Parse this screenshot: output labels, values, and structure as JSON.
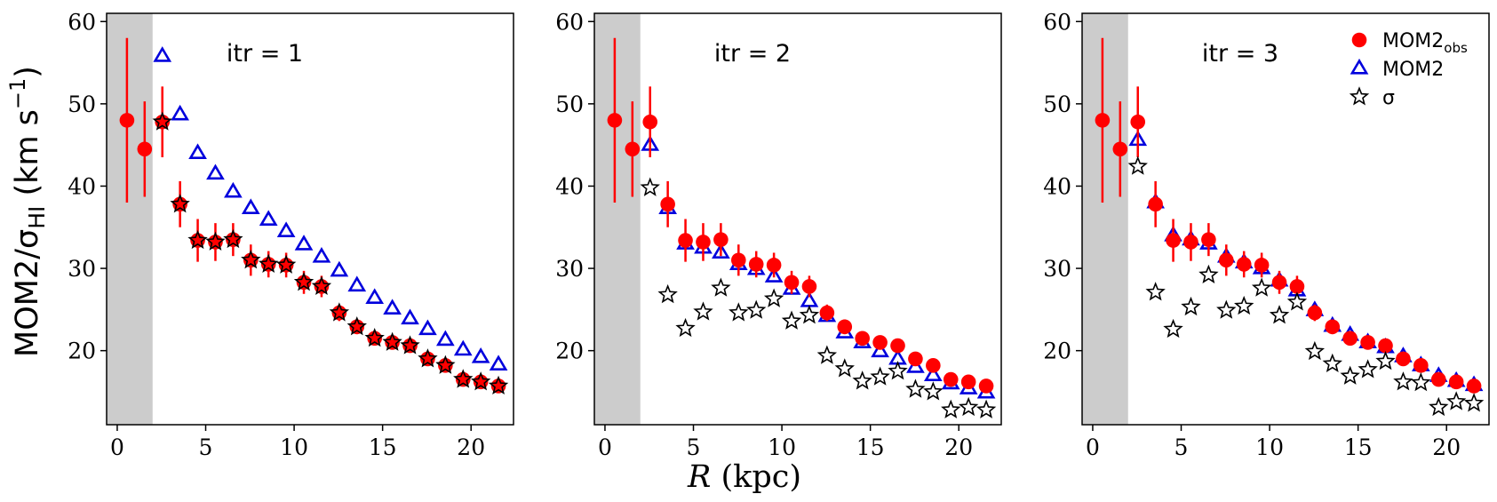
{
  "chart_data": {
    "type": "scatter",
    "layout": "three panels side by side, shared y-axis label on left, shared x-axis label at bottom",
    "ylabel": {
      "main": "MOM2/σ",
      "sub": "HI",
      "units_prefix": " (km s",
      "units_sup": "−1",
      "units_suffix": ")"
    },
    "xlabel": {
      "var": "R",
      "units": " (kpc)"
    },
    "xlim": [
      -0.6,
      22.4
    ],
    "ylim": [
      11,
      61
    ],
    "xticks": [
      0,
      5,
      10,
      15,
      20
    ],
    "yticks": [
      20,
      30,
      40,
      50,
      60
    ],
    "shaded_region": {
      "x_from": -0.6,
      "x_to": 2.0,
      "color": "#cccccc"
    },
    "colors": {
      "obs": "#ff0000",
      "mom2": "#0000dd",
      "sigma": "#000000"
    },
    "legend": {
      "location": "top-right of third panel",
      "entries": [
        {
          "key": "obs",
          "label": "MOM2",
          "sub": "obs"
        },
        {
          "key": "mom2",
          "label": "MOM2",
          "sub": ""
        },
        {
          "key": "sigma",
          "label": "σ",
          "sub": ""
        }
      ]
    },
    "panels": [
      {
        "title": "itr = 1",
        "series": {
          "obs": {
            "name": "MOM2_obs",
            "x": [
              0.55,
              1.55,
              2.55,
              3.55,
              4.55,
              5.55,
              6.55,
              7.55,
              8.55,
              9.55,
              10.55,
              11.55,
              12.55,
              13.55,
              14.55,
              15.55,
              16.55,
              17.55,
              18.55,
              19.55,
              20.55,
              21.55
            ],
            "y": [
              48.0,
              44.5,
              47.8,
              37.8,
              33.4,
              33.2,
              33.5,
              31.0,
              30.5,
              30.4,
              28.3,
              27.8,
              24.6,
              22.9,
              21.5,
              21.0,
              20.6,
              19.0,
              18.2,
              16.5,
              16.2,
              15.7
            ],
            "err": [
              10.0,
              5.8,
              4.3,
              2.8,
              2.6,
              2.3,
              2.0,
              1.9,
              1.6,
              1.5,
              1.4,
              1.3,
              1.0,
              0.9,
              0.8,
              0.8,
              0.7,
              0.7,
              0.7,
              0.6,
              0.6,
              0.6
            ]
          },
          "mom2": {
            "name": "MOM2",
            "x": [
              2.55,
              3.55,
              4.55,
              5.55,
              6.55,
              7.55,
              8.55,
              9.55,
              10.55,
              11.55,
              12.55,
              13.55,
              14.55,
              15.55,
              16.55,
              17.55,
              18.55,
              19.55,
              20.55,
              21.55
            ],
            "y": [
              55.8,
              48.7,
              44.0,
              41.5,
              39.3,
              37.3,
              35.9,
              34.5,
              32.9,
              31.4,
              29.7,
              27.9,
              26.4,
              25.1,
              23.9,
              22.6,
              21.3,
              20.1,
              19.2,
              18.3
            ]
          },
          "sigma": {
            "name": "σ",
            "filled_red": true,
            "x": [
              2.55,
              3.55,
              4.55,
              5.55,
              6.55,
              7.55,
              8.55,
              9.55,
              10.55,
              11.55,
              12.55,
              13.55,
              14.55,
              15.55,
              16.55,
              17.55,
              18.55,
              19.55,
              20.55,
              21.55
            ],
            "y": [
              47.8,
              37.8,
              33.4,
              33.2,
              33.5,
              31.0,
              30.5,
              30.4,
              28.3,
              27.8,
              24.6,
              22.9,
              21.5,
              21.0,
              20.6,
              19.0,
              18.2,
              16.5,
              16.2,
              15.7
            ]
          }
        }
      },
      {
        "title": "itr = 2",
        "series": {
          "obs": {
            "name": "MOM2_obs",
            "x": [
              0.55,
              1.55,
              2.55,
              3.55,
              4.55,
              5.55,
              6.55,
              7.55,
              8.55,
              9.55,
              10.55,
              11.55,
              12.55,
              13.55,
              14.55,
              15.55,
              16.55,
              17.55,
              18.55,
              19.55,
              20.55,
              21.55
            ],
            "y": [
              48.0,
              44.5,
              47.8,
              37.8,
              33.4,
              33.2,
              33.5,
              31.0,
              30.5,
              30.4,
              28.3,
              27.8,
              24.6,
              22.9,
              21.5,
              21.0,
              20.6,
              19.0,
              18.2,
              16.5,
              16.2,
              15.7
            ],
            "err": [
              10.0,
              5.8,
              4.3,
              2.8,
              2.6,
              2.3,
              2.0,
              1.9,
              1.6,
              1.5,
              1.4,
              1.3,
              1.0,
              0.9,
              0.8,
              0.8,
              0.7,
              0.7,
              0.7,
              0.6,
              0.6,
              0.6
            ]
          },
          "mom2": {
            "name": "MOM2",
            "x": [
              2.55,
              3.55,
              4.55,
              5.55,
              6.55,
              7.55,
              8.55,
              9.55,
              10.55,
              11.55,
              12.55,
              13.55,
              14.55,
              15.55,
              16.55,
              17.55,
              18.55,
              19.55,
              20.55,
              21.55
            ],
            "y": [
              45.0,
              37.3,
              33.0,
              32.5,
              31.9,
              30.5,
              29.9,
              29.0,
              27.5,
              26.0,
              24.2,
              22.2,
              21.0,
              19.9,
              19.0,
              18.0,
              17.0,
              16.0,
              15.4,
              14.9
            ]
          },
          "sigma": {
            "name": "σ",
            "filled_red": false,
            "x": [
              2.55,
              3.55,
              4.55,
              5.55,
              6.55,
              7.55,
              8.55,
              9.55,
              10.55,
              11.55,
              12.55,
              13.55,
              14.55,
              15.55,
              16.55,
              17.55,
              18.55,
              19.55,
              20.55,
              21.55
            ],
            "y": [
              39.8,
              26.8,
              22.7,
              24.7,
              27.6,
              24.6,
              24.9,
              26.3,
              23.6,
              24.3,
              19.4,
              17.8,
              16.3,
              16.8,
              17.5,
              15.3,
              15.0,
              12.8,
              13.1,
              12.8
            ]
          }
        }
      },
      {
        "title": "itr = 3",
        "series": {
          "obs": {
            "name": "MOM2_obs",
            "x": [
              0.55,
              1.55,
              2.55,
              3.55,
              4.55,
              5.55,
              6.55,
              7.55,
              8.55,
              9.55,
              10.55,
              11.55,
              12.55,
              13.55,
              14.55,
              15.55,
              16.55,
              17.55,
              18.55,
              19.55,
              20.55,
              21.55
            ],
            "y": [
              48.0,
              44.5,
              47.8,
              37.8,
              33.4,
              33.2,
              33.5,
              31.0,
              30.5,
              30.4,
              28.3,
              27.8,
              24.6,
              22.9,
              21.5,
              21.0,
              20.6,
              19.0,
              18.2,
              16.5,
              16.2,
              15.7
            ],
            "err": [
              10.0,
              5.8,
              4.3,
              2.8,
              2.6,
              2.3,
              2.0,
              1.9,
              1.6,
              1.5,
              1.4,
              1.3,
              1.0,
              0.9,
              0.8,
              0.8,
              0.7,
              0.7,
              0.7,
              0.6,
              0.6,
              0.6
            ]
          },
          "mom2": {
            "name": "MOM2",
            "x": [
              2.55,
              3.55,
              4.55,
              5.55,
              6.55,
              7.55,
              8.55,
              9.55,
              10.55,
              11.55,
              12.55,
              13.55,
              14.55,
              15.55,
              16.55,
              17.55,
              18.55,
              19.55,
              20.55,
              21.55
            ],
            "y": [
              45.6,
              38.0,
              34.0,
              33.5,
              33.0,
              31.4,
              30.7,
              30.0,
              28.5,
              27.3,
              24.9,
              23.0,
              21.9,
              21.0,
              20.4,
              19.3,
              18.2,
              16.9,
              16.3,
              15.8
            ]
          },
          "sigma": {
            "name": "σ",
            "filled_red": false,
            "x": [
              2.55,
              3.55,
              4.55,
              5.55,
              6.55,
              7.55,
              8.55,
              9.55,
              10.55,
              11.55,
              12.55,
              13.55,
              14.55,
              15.55,
              16.55,
              17.55,
              18.55,
              19.55,
              20.55,
              21.55
            ],
            "y": [
              42.4,
              27.1,
              22.6,
              25.3,
              29.2,
              24.9,
              25.4,
              27.6,
              24.3,
              25.9,
              19.9,
              18.4,
              16.9,
              17.7,
              18.7,
              16.2,
              16.1,
              13.1,
              13.8,
              13.6
            ]
          }
        }
      }
    ]
  }
}
